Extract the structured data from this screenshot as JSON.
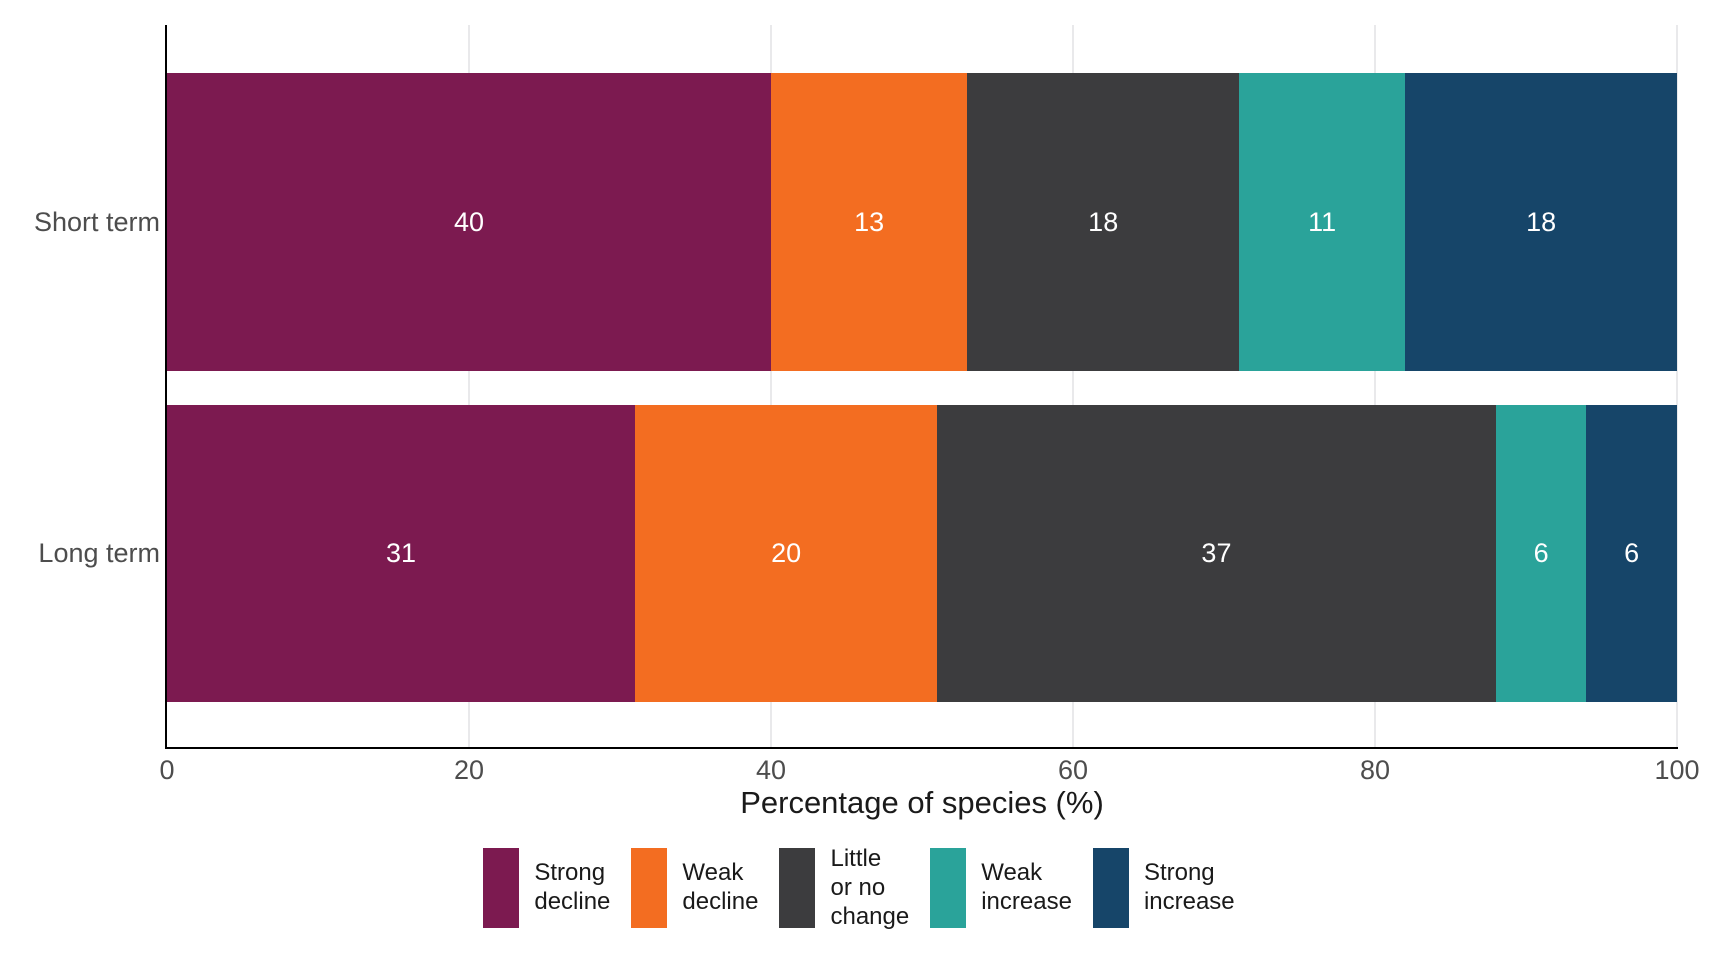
{
  "chart_data": {
    "type": "bar",
    "orientation": "horizontal",
    "stacked": true,
    "title": "",
    "xlabel": "Percentage of species (%)",
    "ylabel": "",
    "xlim": [
      0,
      100
    ],
    "xticks": [
      0,
      20,
      40,
      60,
      80,
      100
    ],
    "grid": "vertical light gray",
    "legend_position": "bottom",
    "categories": [
      "Short term",
      "Long term"
    ],
    "series": [
      {
        "name": "Strong decline",
        "color": "#7c1a50",
        "values": [
          40,
          31
        ]
      },
      {
        "name": "Weak decline",
        "color": "#f36d21",
        "values": [
          13,
          20
        ]
      },
      {
        "name": "Little or no change",
        "color": "#3c3c3e",
        "values": [
          18,
          37
        ]
      },
      {
        "name": "Weak increase",
        "color": "#2aa39a",
        "values": [
          11,
          6
        ]
      },
      {
        "name": "Strong increase",
        "color": "#164569",
        "values": [
          18,
          6
        ]
      }
    ]
  },
  "axis": {
    "title": "Percentage of species (%)",
    "tick_labels": [
      "0",
      "20",
      "40",
      "60",
      "80",
      "100"
    ]
  },
  "categories": {
    "short_term": "Short term",
    "long_term": "Long term"
  },
  "legend": {
    "items": [
      {
        "label": "Strong\ndecline",
        "color": "#7c1a50"
      },
      {
        "label": "Weak\ndecline",
        "color": "#f36d21"
      },
      {
        "label": "Little\nor no\nchange",
        "color": "#3c3c3e"
      },
      {
        "label": "Weak\nincrease",
        "color": "#2aa39a"
      },
      {
        "label": "Strong\nincrease",
        "color": "#164569"
      }
    ]
  },
  "colors": {
    "axis_line": "#000000",
    "gridline": "#e9e9eb",
    "tick_text": "#4d4d4d",
    "category_text": "#4d4d4d",
    "value_label_text": "#ffffff",
    "background": "#ffffff"
  }
}
